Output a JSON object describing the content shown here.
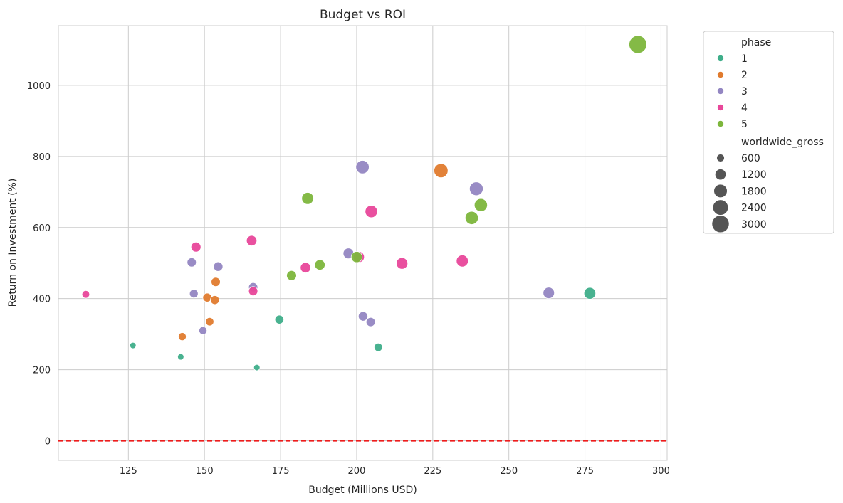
{
  "chart_data": {
    "type": "scatter",
    "title": "Budget vs ROI",
    "xlabel": "Budget (Millions USD)",
    "ylabel": "Return on Investment (%)",
    "xlim": [
      102,
      302
    ],
    "ylim": [
      -55,
      1168
    ],
    "xticks": [
      125,
      150,
      175,
      200,
      225,
      250,
      275,
      300
    ],
    "yticks": [
      0,
      200,
      400,
      600,
      800,
      1000
    ],
    "grid": true,
    "reference_line": {
      "y": 0,
      "color": "#ee1c1c",
      "style": "dashed"
    },
    "hue": {
      "title": "phase",
      "levels": [
        {
          "label": "1",
          "color": "#3fae8a"
        },
        {
          "label": "2",
          "color": "#e07b2e"
        },
        {
          "label": "3",
          "color": "#9386c2"
        },
        {
          "label": "4",
          "color": "#e8479a"
        },
        {
          "label": "5",
          "color": "#7db63c"
        }
      ]
    },
    "size": {
      "title": "worldwide_gross",
      "levels": [
        600,
        1200,
        1800,
        2400,
        3000
      ]
    },
    "legend_placement": "outside-upper-right",
    "points": [
      {
        "phase": "1",
        "x": 126.5,
        "y": 268,
        "gross": 400
      },
      {
        "phase": "1",
        "x": 142.2,
        "y": 236,
        "gross": 400
      },
      {
        "phase": "1",
        "x": 167.2,
        "y": 206,
        "gross": 400
      },
      {
        "phase": "1",
        "x": 174.6,
        "y": 341,
        "gross": 800
      },
      {
        "phase": "1",
        "x": 207.1,
        "y": 263,
        "gross": 700
      },
      {
        "phase": "1",
        "x": 276.6,
        "y": 415,
        "gross": 1400
      },
      {
        "phase": "2",
        "x": 142.7,
        "y": 293,
        "gross": 650
      },
      {
        "phase": "2",
        "x": 150.9,
        "y": 403,
        "gross": 800
      },
      {
        "phase": "2",
        "x": 151.7,
        "y": 335,
        "gross": 700
      },
      {
        "phase": "2",
        "x": 153.4,
        "y": 396,
        "gross": 800
      },
      {
        "phase": "2",
        "x": 153.7,
        "y": 447,
        "gross": 850
      },
      {
        "phase": "2",
        "x": 227.7,
        "y": 760,
        "gross": 2000
      },
      {
        "phase": "3",
        "x": 145.8,
        "y": 502,
        "gross": 850
      },
      {
        "phase": "3",
        "x": 146.5,
        "y": 414,
        "gross": 750
      },
      {
        "phase": "3",
        "x": 149.5,
        "y": 310,
        "gross": 650
      },
      {
        "phase": "3",
        "x": 154.5,
        "y": 490,
        "gross": 900
      },
      {
        "phase": "3",
        "x": 166.0,
        "y": 432,
        "gross": 850
      },
      {
        "phase": "3",
        "x": 197.3,
        "y": 527,
        "gross": 1150
      },
      {
        "phase": "3",
        "x": 201.9,
        "y": 770,
        "gross": 1800
      },
      {
        "phase": "3",
        "x": 202.1,
        "y": 350,
        "gross": 900
      },
      {
        "phase": "3",
        "x": 204.6,
        "y": 334,
        "gross": 850
      },
      {
        "phase": "3",
        "x": 239.3,
        "y": 709,
        "gross": 1900
      },
      {
        "phase": "3",
        "x": 263.1,
        "y": 416,
        "gross": 1300
      },
      {
        "phase": "4",
        "x": 111.0,
        "y": 412,
        "gross": 600
      },
      {
        "phase": "4",
        "x": 147.2,
        "y": 545,
        "gross": 1000
      },
      {
        "phase": "4",
        "x": 165.5,
        "y": 563,
        "gross": 1100
      },
      {
        "phase": "4",
        "x": 166.0,
        "y": 421,
        "gross": 850
      },
      {
        "phase": "4",
        "x": 183.2,
        "y": 487,
        "gross": 1100
      },
      {
        "phase": "4",
        "x": 200.7,
        "y": 517,
        "gross": 1250
      },
      {
        "phase": "4",
        "x": 204.8,
        "y": 645,
        "gross": 1550
      },
      {
        "phase": "4",
        "x": 214.9,
        "y": 499,
        "gross": 1350
      },
      {
        "phase": "4",
        "x": 234.7,
        "y": 506,
        "gross": 1450
      },
      {
        "phase": "5",
        "x": 178.6,
        "y": 465,
        "gross": 1000
      },
      {
        "phase": "5",
        "x": 183.9,
        "y": 682,
        "gross": 1450
      },
      {
        "phase": "5",
        "x": 187.9,
        "y": 495,
        "gross": 1100
      },
      {
        "phase": "5",
        "x": 200.0,
        "y": 517,
        "gross": 1250
      },
      {
        "phase": "5",
        "x": 237.8,
        "y": 627,
        "gross": 1750
      },
      {
        "phase": "5",
        "x": 240.8,
        "y": 663,
        "gross": 1750
      },
      {
        "phase": "5",
        "x": 292.4,
        "y": 1115,
        "gross": 3200
      }
    ]
  }
}
